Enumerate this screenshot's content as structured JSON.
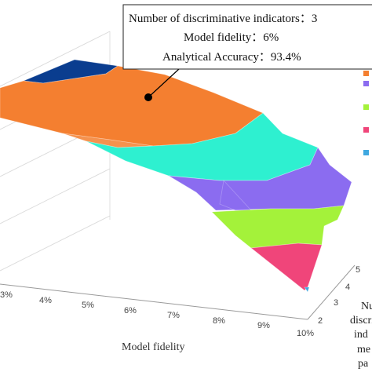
{
  "chart_data": {
    "type": "surface",
    "xlabel": "Model fidelity",
    "x_ticks": [
      "3%",
      "4%",
      "5%",
      "6%",
      "7%",
      "8%",
      "9%",
      "10%"
    ],
    "y_ticks": [
      "2",
      "3",
      "4",
      "5"
    ],
    "ylabel_fragments": [
      "Nu",
      "discri",
      "ind",
      "me",
      "pa"
    ],
    "tooltip": {
      "line1": "Number of discriminative indicators：3",
      "line2": "Model fidelity：6%",
      "line3": "Analytical Accuracy：93.4%"
    },
    "highlight_point": {
      "x": "6%",
      "y": "3",
      "z": "93.4%"
    },
    "bands": [
      {
        "color": "#0a3d8f"
      },
      {
        "color": "#f47f30"
      },
      {
        "color": "#2ef0d0"
      },
      {
        "color": "#8b6cf0"
      },
      {
        "color": "#a4f23a"
      },
      {
        "color": "#f0457a"
      },
      {
        "color": "#3fa8e0"
      }
    ],
    "grid": true
  }
}
